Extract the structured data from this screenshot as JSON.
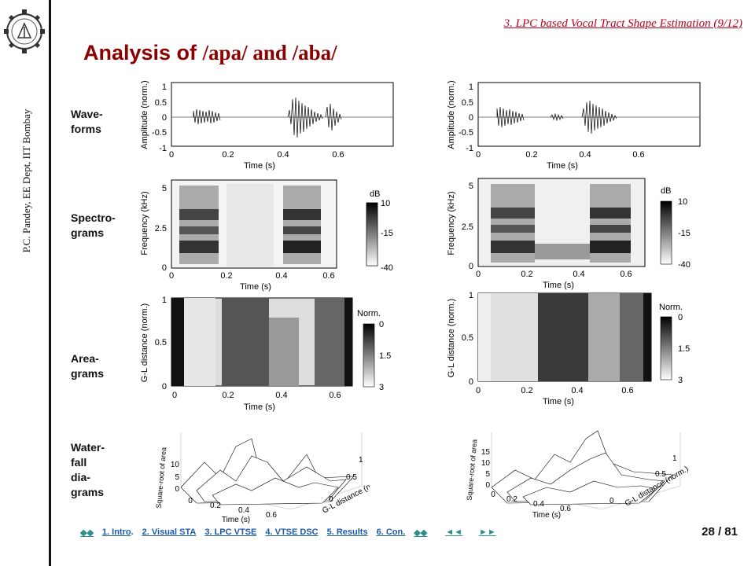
{
  "header": {
    "section_link": "3. LPC based Vocal Tract Shape Estimation (9/12)",
    "title_part1": "Analysis of ",
    "title_part2": "/apa/ and /aba/"
  },
  "sidebar": {
    "credit": "P.C. Pandey, EE Dept, IIT Bombay"
  },
  "row_labels": {
    "waveforms": [
      "Wave-",
      "forms"
    ],
    "spectrograms": [
      "Spectro-",
      "grams"
    ],
    "areagrams": [
      "Area-",
      "grams"
    ],
    "waterfall": [
      "Water-",
      "fall",
      "dia-",
      "grams"
    ]
  },
  "plots": {
    "time_axis_label": "Time (s)",
    "time_ticks": [
      "0",
      "0.2",
      "0.4",
      "0.6"
    ],
    "waveform": {
      "ylabel": "Amplitude (norm.)",
      "yticks": [
        "1",
        "0.5",
        "0",
        "-0.5",
        "-1"
      ]
    },
    "spectrogram": {
      "ylabel": "Frequency (kHz)",
      "yticks": [
        "5",
        "2.5",
        "0"
      ],
      "colorbar_title": "dB",
      "colorbar_ticks": [
        "10",
        "-15",
        "-40"
      ]
    },
    "areagram": {
      "ylabel": "G-L distance (norm.)",
      "yticks": [
        "1",
        "0.5",
        "0"
      ],
      "colorbar_title": "Norm.",
      "colorbar_ticks": [
        "0",
        "1.5",
        "3"
      ]
    },
    "waterfall": {
      "zlabel": "Square-root of area",
      "left_zticks": [
        "10",
        "5",
        "0"
      ],
      "right_zticks": [
        "15",
        "10",
        "5",
        "0"
      ],
      "time_ticks": [
        "0",
        "0.2",
        "0.4",
        "0.6"
      ],
      "gl_label": "G-L distance (norm.)",
      "gl_ticks": [
        "0.5",
        "1"
      ],
      "gl_zero": "0",
      "time_label": "Time (s)"
    }
  },
  "footer": {
    "nav_first": "◆◆",
    "nav_items": [
      "1. Intro",
      "2. Visual STA",
      "3. LPC VTSE",
      "4. VTSE DSC",
      "5. Results",
      "6. Con."
    ],
    "nav_last": "◆◆",
    "nav_prev": "◄◄",
    "nav_next": "►►",
    "page_number": "28 / 81"
  }
}
